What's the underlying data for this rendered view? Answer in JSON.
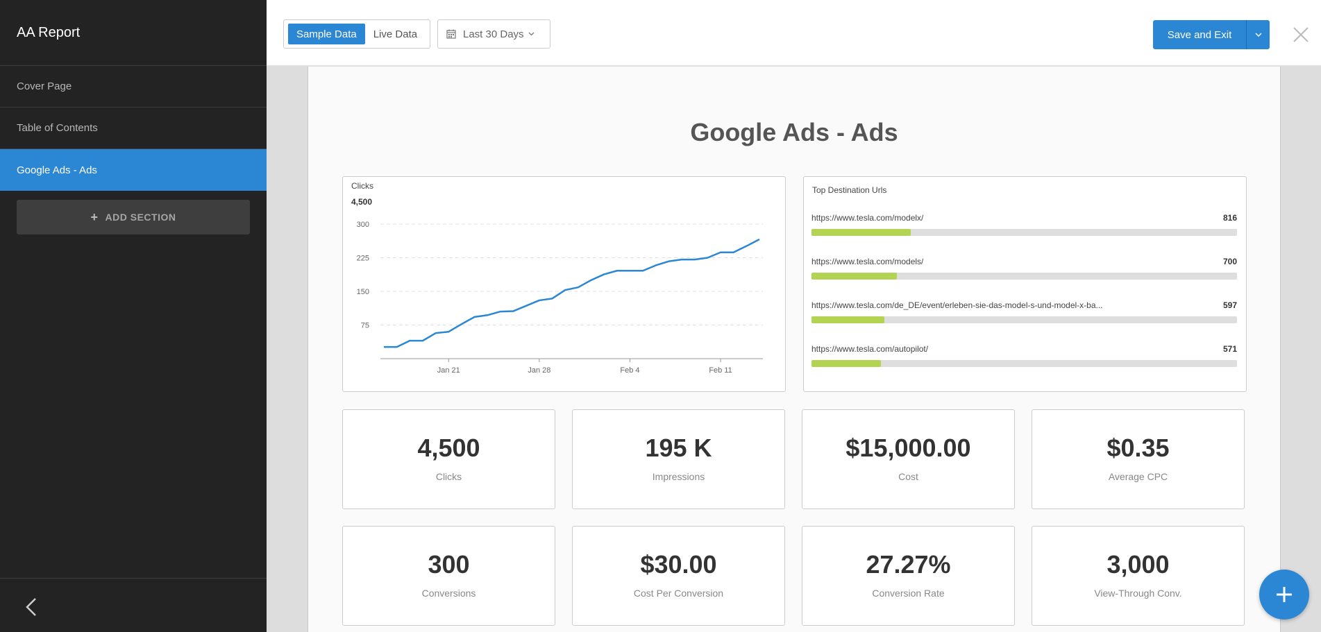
{
  "sidebar": {
    "title": "AA Report",
    "items": [
      {
        "label": "Cover Page"
      },
      {
        "label": "Table of Contents"
      },
      {
        "label": "Google Ads - Ads",
        "active": true
      }
    ],
    "add_section_label": "ADD SECTION"
  },
  "toolbar": {
    "data_toggle": [
      "Sample Data",
      "Live Data"
    ],
    "date_range": "Last 30 Days",
    "save_label": "Save and Exit"
  },
  "page": {
    "title": "Google Ads - Ads"
  },
  "clicks_chart": {
    "title": "Clicks",
    "total": "4,500",
    "chart_data": {
      "type": "line",
      "title": "Clicks",
      "ylim": [
        0,
        300
      ],
      "yticks": [
        "300",
        "225",
        "150",
        "75"
      ],
      "xticks": [
        {
          "label": "Jan 21",
          "x": 5
        },
        {
          "label": "Jan 28",
          "x": 12
        },
        {
          "label": "Feb 4",
          "x": 19
        },
        {
          "label": "Feb 11",
          "x": 26
        }
      ],
      "grid": true,
      "series": [
        {
          "values": [
            26,
            26,
            40,
            40,
            57,
            60,
            77,
            93,
            97,
            105,
            106,
            118,
            130,
            134,
            153,
            159,
            175,
            188,
            196,
            196,
            196,
            208,
            217,
            221,
            221,
            225,
            237,
            237,
            251,
            266
          ]
        }
      ],
      "color": "#2b86d4"
    }
  },
  "top_urls": {
    "title": "Top Destination Urls",
    "max": 3500,
    "rows": [
      {
        "url": "https://www.tesla.com/modelx/",
        "value": 816
      },
      {
        "url": "https://www.tesla.com/models/",
        "value": 700
      },
      {
        "url": "https://www.tesla.com/de_DE/event/erleben-sie-das-model-s-und-model-x-ba...",
        "value": 597
      },
      {
        "url": "https://www.tesla.com/autopilot/",
        "value": 571
      }
    ],
    "bar_color": "#b3d453"
  },
  "kpis": [
    {
      "value": "4,500",
      "label": "Clicks"
    },
    {
      "value": "195 K",
      "label": "Impressions"
    },
    {
      "value": "$15,000.00",
      "label": "Cost"
    },
    {
      "value": "$0.35",
      "label": "Average CPC"
    },
    {
      "value": "300",
      "label": "Conversions"
    },
    {
      "value": "$30.00",
      "label": "Cost Per Conversion"
    },
    {
      "value": "27.27%",
      "label": "Conversion Rate"
    },
    {
      "value": "3,000",
      "label": "View-Through Conv."
    }
  ],
  "colors": {
    "accent": "#2b86d4",
    "sidebar_bg": "#232323"
  },
  "icons": [
    "calendar-icon",
    "chevron-down-icon",
    "close-icon",
    "plus-icon",
    "chevron-left-icon"
  ]
}
